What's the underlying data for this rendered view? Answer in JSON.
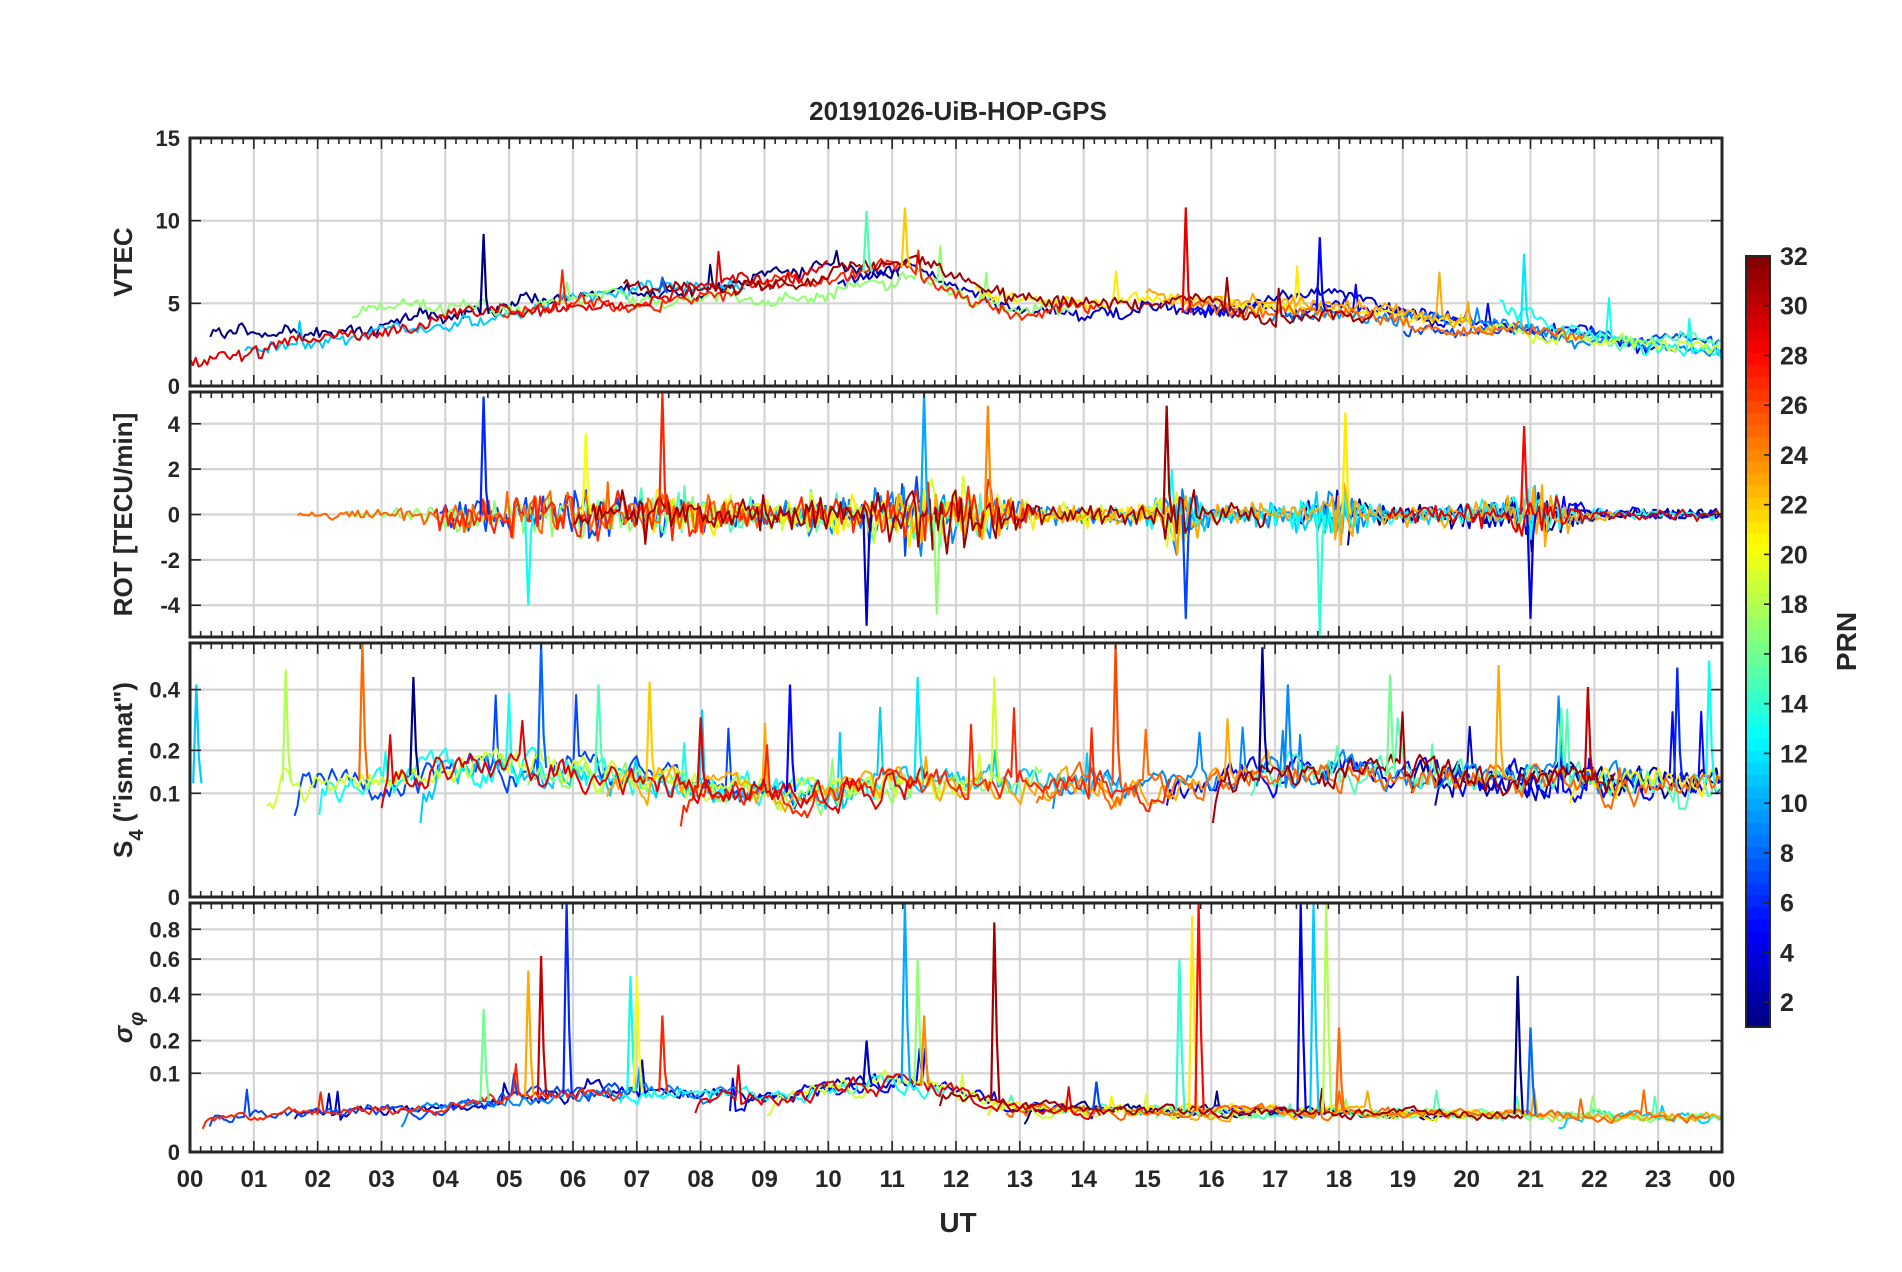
{
  "chart_data": {
    "type": "line",
    "title": "20191026-UiB-HOP-GPS",
    "xlabel": "UT",
    "x_range_hours": [
      0,
      24
    ],
    "x_tick_labels": [
      "00",
      "01",
      "02",
      "03",
      "04",
      "05",
      "06",
      "07",
      "08",
      "09",
      "10",
      "11",
      "12",
      "13",
      "14",
      "15",
      "16",
      "17",
      "18",
      "19",
      "20",
      "21",
      "22",
      "23",
      "00"
    ],
    "colorbar": {
      "label": "PRN",
      "range": [
        1,
        32
      ],
      "tick_labels": [
        "2",
        "4",
        "6",
        "8",
        "10",
        "12",
        "14",
        "16",
        "18",
        "20",
        "22",
        "24",
        "26",
        "28",
        "30",
        "32"
      ],
      "colormap": "jet"
    },
    "panels": [
      {
        "id": "vtec",
        "ylabel": "VTEC",
        "ylim": [
          0,
          15
        ],
        "yticks": [
          0,
          5,
          10,
          15
        ],
        "ytick_labels": [
          "0",
          "5",
          "10",
          "15"
        ],
        "gridlines": [
          0,
          5,
          10,
          15
        ],
        "baseline_profile": [
          [
            0,
            2.3
          ],
          [
            2,
            2.8
          ],
          [
            4,
            4.0
          ],
          [
            6,
            5.2
          ],
          [
            8,
            5.8
          ],
          [
            10,
            6.6
          ],
          [
            11.2,
            7.2
          ],
          [
            12,
            5.8
          ],
          [
            13,
            4.8
          ],
          [
            15,
            4.6
          ],
          [
            16,
            4.3
          ],
          [
            18,
            4.6
          ],
          [
            20,
            3.9
          ],
          [
            21,
            3.5
          ],
          [
            22,
            2.8
          ],
          [
            24,
            2.2
          ]
        ],
        "spikes": [
          [
            4.6,
            9.2
          ],
          [
            7.4,
            6.6
          ],
          [
            10.6,
            10.6
          ],
          [
            11.2,
            10.8
          ],
          [
            15.6,
            10.8
          ],
          [
            17.7,
            9.0
          ],
          [
            20.9,
            8.0
          ]
        ]
      },
      {
        "id": "rot",
        "ylabel": "ROT [TECU/min]",
        "ylim": [
          -5.4,
          5.4
        ],
        "yticks": [
          -4,
          -2,
          0,
          2,
          4
        ],
        "ytick_labels": [
          "-4",
          "-2",
          "0",
          "2",
          "4"
        ],
        "gridlines": [
          -4,
          -2,
          0,
          2,
          4
        ],
        "activity_profile": [
          [
            0,
            0.25
          ],
          [
            3,
            0.3
          ],
          [
            4,
            0.9
          ],
          [
            5.5,
            1.6
          ],
          [
            7.5,
            1.4
          ],
          [
            9,
            0.9
          ],
          [
            10.5,
            1.3
          ],
          [
            11.5,
            2.0
          ],
          [
            12.5,
            1.6
          ],
          [
            13.5,
            0.6
          ],
          [
            15,
            0.6
          ],
          [
            15.5,
            2.4
          ],
          [
            16,
            0.5
          ],
          [
            17.5,
            1.0
          ],
          [
            18,
            2.2
          ],
          [
            18.5,
            0.5
          ],
          [
            20.5,
            0.8
          ],
          [
            21,
            1.8
          ],
          [
            22,
            0.4
          ],
          [
            24,
            0.3
          ]
        ],
        "spikes": [
          [
            4.6,
            5.2
          ],
          [
            5.3,
            -4.0
          ],
          [
            6.2,
            3.6
          ],
          [
            7.4,
            5.4
          ],
          [
            10.6,
            -4.9
          ],
          [
            11.5,
            5.4
          ],
          [
            11.7,
            -4.4
          ],
          [
            12.5,
            4.8
          ],
          [
            15.3,
            4.8
          ],
          [
            15.6,
            -4.6
          ],
          [
            17.7,
            -5.3
          ],
          [
            18.1,
            4.5
          ],
          [
            20.9,
            3.9
          ],
          [
            21.0,
            -4.6
          ]
        ]
      },
      {
        "id": "s4",
        "ylabel": "S4 (\"ism.mat\")",
        "ylabel_main": "S",
        "ylabel_sub": "4",
        "ylabel_suffix": " (\"ism.mat\")",
        "ylim": [
          0,
          0.6
        ],
        "scale": "sqrt",
        "yticks": [
          0,
          0.1,
          0.2,
          0.4
        ],
        "ytick_labels": [
          "0",
          "0.1",
          "0.2",
          "0.4"
        ],
        "gridlines": [
          0.1,
          0.2,
          0.4
        ],
        "level_profile": [
          [
            0,
            0.12
          ],
          [
            3,
            0.13
          ],
          [
            5,
            0.16
          ],
          [
            6,
            0.15
          ],
          [
            8,
            0.11
          ],
          [
            10,
            0.1
          ],
          [
            11,
            0.13
          ],
          [
            12,
            0.12
          ],
          [
            14,
            0.13
          ],
          [
            15,
            0.1
          ],
          [
            17,
            0.15
          ],
          [
            19,
            0.14
          ],
          [
            21,
            0.13
          ],
          [
            24,
            0.12
          ]
        ],
        "spikes": [
          [
            0.1,
            0.42
          ],
          [
            1.5,
            0.48
          ],
          [
            2.7,
            0.6
          ],
          [
            3.5,
            0.45
          ],
          [
            5.5,
            0.6
          ],
          [
            6.4,
            0.42
          ],
          [
            7.2,
            0.43
          ],
          [
            8.0,
            0.3
          ],
          [
            9.4,
            0.42
          ],
          [
            11.4,
            0.45
          ],
          [
            12.6,
            0.45
          ],
          [
            14.5,
            0.59
          ],
          [
            16.8,
            0.58
          ],
          [
            17.2,
            0.42
          ],
          [
            18.8,
            0.46
          ],
          [
            20.5,
            0.5
          ],
          [
            21.9,
            0.41
          ],
          [
            23.3,
            0.49
          ],
          [
            23.8,
            0.52
          ]
        ]
      },
      {
        "id": "sigma",
        "ylabel": "σφ",
        "ylabel_main": "σ",
        "ylabel_sub": "φ",
        "ylim": [
          0,
          1.0
        ],
        "scale": "sqrt",
        "yticks": [
          0,
          0.1,
          0.2,
          0.4,
          0.6,
          0.8
        ],
        "ytick_labels": [
          "0",
          "0.1",
          "0.2",
          "0.4",
          "0.6",
          "0.8"
        ],
        "gridlines": [
          0.1,
          0.2,
          0.4,
          0.6,
          0.8
        ],
        "level_profile": [
          [
            0,
            0.02
          ],
          [
            4,
            0.03
          ],
          [
            5,
            0.05
          ],
          [
            7,
            0.06
          ],
          [
            9,
            0.05
          ],
          [
            11,
            0.08
          ],
          [
            12,
            0.06
          ],
          [
            13,
            0.03
          ],
          [
            24,
            0.02
          ]
        ],
        "spikes": [
          [
            4.6,
            0.33
          ],
          [
            5.3,
            0.53
          ],
          [
            5.5,
            0.62
          ],
          [
            5.9,
            1.0
          ],
          [
            6.9,
            0.5
          ],
          [
            7.0,
            0.5
          ],
          [
            7.4,
            0.3
          ],
          [
            10.6,
            0.2
          ],
          [
            11.2,
            1.0
          ],
          [
            11.4,
            0.6
          ],
          [
            11.5,
            0.3
          ],
          [
            12.6,
            0.85
          ],
          [
            14.2,
            0.08
          ],
          [
            15.5,
            0.6
          ],
          [
            15.7,
            0.9
          ],
          [
            15.8,
            1.0
          ],
          [
            17.4,
            1.0
          ],
          [
            17.6,
            1.0
          ],
          [
            17.8,
            1.0
          ],
          [
            18.0,
            0.25
          ],
          [
            20.8,
            0.5
          ],
          [
            21.0,
            0.25
          ]
        ]
      }
    ]
  }
}
